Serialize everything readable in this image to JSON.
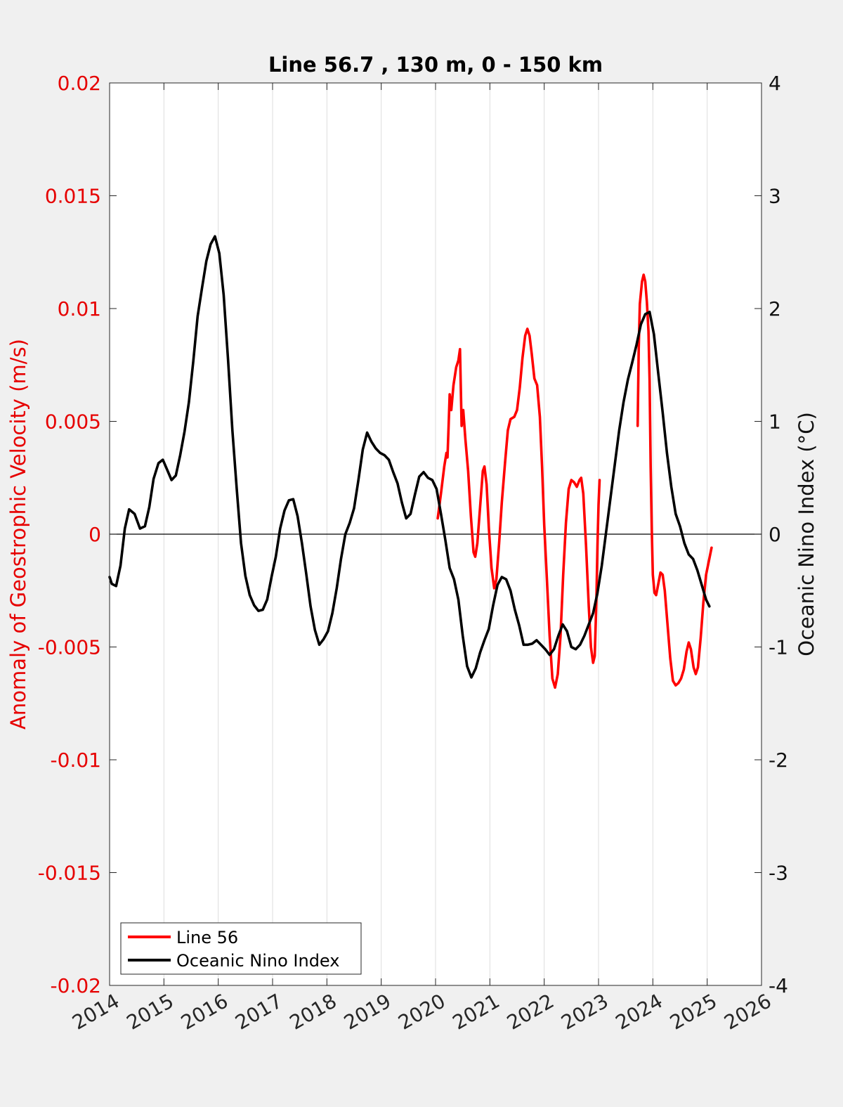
{
  "chart_data": {
    "type": "line",
    "title": "Line 56.7 , 130 m, 0 - 150 km",
    "xlabel": "",
    "ylabel_left": "Anomaly of Geostrophic Velocity (m/s)",
    "ylabel_right": "Oceanic Nino Index (°C)",
    "xlim": [
      2014,
      2026
    ],
    "ylim_left": [
      -0.02,
      0.02
    ],
    "ylim_right": [
      -4,
      4
    ],
    "x_ticks": [
      "2014",
      "2015",
      "2016",
      "2017",
      "2018",
      "2019",
      "2020",
      "2021",
      "2022",
      "2023",
      "2024",
      "2025",
      "2026"
    ],
    "y_ticks_left": [
      "-0.02",
      "-0.015",
      "-0.01",
      "-0.005",
      "0",
      "0.005",
      "0.01",
      "0.015",
      "0.02"
    ],
    "y_ticks_right": [
      "-4",
      "-3",
      "-2",
      "-1",
      "0",
      "1",
      "2",
      "3",
      "4"
    ],
    "grid": "vertical",
    "legend_position": "bottom-left",
    "colors": {
      "left_axis": "#e60000",
      "right_axis": "#111111",
      "grid": "#dddddd"
    },
    "series": [
      {
        "name": "Line 56",
        "color": "#ff0000",
        "axis": "left",
        "segments": [
          [
            [
              2020.04,
              0.0007
            ],
            [
              2020.1,
              0.0018
            ],
            [
              2020.16,
              0.003
            ],
            [
              2020.2,
              0.0036
            ],
            [
              2020.22,
              0.0034
            ],
            [
              2020.24,
              0.0048
            ],
            [
              2020.26,
              0.0062
            ],
            [
              2020.29,
              0.0055
            ],
            [
              2020.33,
              0.0066
            ],
            [
              2020.38,
              0.0074
            ],
            [
              2020.42,
              0.0077
            ],
            [
              2020.45,
              0.0082
            ],
            [
              2020.48,
              0.0048
            ],
            [
              2020.51,
              0.0055
            ],
            [
              2020.55,
              0.0042
            ],
            [
              2020.6,
              0.0028
            ],
            [
              2020.65,
              0.0008
            ],
            [
              2020.7,
              -0.0008
            ],
            [
              2020.73,
              -0.001
            ],
            [
              2020.77,
              -0.0004
            ],
            [
              2020.82,
              0.0012
            ],
            [
              2020.87,
              0.0028
            ],
            [
              2020.9,
              0.003
            ],
            [
              2020.94,
              0.0022
            ],
            [
              2020.98,
              0.0003
            ],
            [
              2021.03,
              -0.0015
            ],
            [
              2021.08,
              -0.0024
            ],
            [
              2021.12,
              -0.002
            ],
            [
              2021.17,
              -0.0004
            ],
            [
              2021.22,
              0.0014
            ],
            [
              2021.28,
              0.0032
            ],
            [
              2021.33,
              0.0046
            ],
            [
              2021.38,
              0.0051
            ],
            [
              2021.45,
              0.0052
            ],
            [
              2021.5,
              0.0055
            ],
            [
              2021.55,
              0.0065
            ],
            [
              2021.6,
              0.0078
            ],
            [
              2021.65,
              0.0088
            ],
            [
              2021.69,
              0.0091
            ],
            [
              2021.73,
              0.0088
            ],
            [
              2021.77,
              0.008
            ],
            [
              2021.82,
              0.0069
            ],
            [
              2021.87,
              0.0066
            ],
            [
              2021.92,
              0.0052
            ],
            [
              2021.96,
              0.003
            ],
            [
              2022.0,
              0.0004
            ],
            [
              2022.05,
              -0.002
            ],
            [
              2022.1,
              -0.0045
            ],
            [
              2022.15,
              -0.0064
            ],
            [
              2022.2,
              -0.0068
            ],
            [
              2022.25,
              -0.0062
            ],
            [
              2022.3,
              -0.0045
            ],
            [
              2022.35,
              -0.0018
            ],
            [
              2022.4,
              0.0005
            ],
            [
              2022.45,
              0.002
            ],
            [
              2022.5,
              0.0024
            ],
            [
              2022.55,
              0.0023
            ],
            [
              2022.6,
              0.0021
            ],
            [
              2022.65,
              0.0024
            ],
            [
              2022.68,
              0.0025
            ],
            [
              2022.72,
              0.0018
            ],
            [
              2022.77,
              -0.0005
            ],
            [
              2022.82,
              -0.0032
            ],
            [
              2022.86,
              -0.005
            ],
            [
              2022.9,
              -0.0057
            ],
            [
              2022.93,
              -0.0054
            ],
            [
              2022.96,
              -0.003
            ],
            [
              2022.98,
              -0.0005
            ],
            [
              2023.0,
              0.0013
            ],
            [
              2023.02,
              0.0024
            ]
          ],
          [
            [
              2023.72,
              0.0048
            ],
            [
              2023.74,
              0.0082
            ],
            [
              2023.76,
              0.0102
            ],
            [
              2023.8,
              0.0112
            ],
            [
              2023.83,
              0.0115
            ],
            [
              2023.86,
              0.0112
            ],
            [
              2023.89,
              0.0103
            ],
            [
              2023.92,
              0.009
            ],
            [
              2023.94,
              0.0068
            ],
            [
              2023.96,
              0.003
            ],
            [
              2023.98,
              0.0002
            ],
            [
              2024.0,
              -0.0018
            ],
            [
              2024.03,
              -0.0026
            ],
            [
              2024.06,
              -0.0027
            ],
            [
              2024.1,
              -0.0022
            ],
            [
              2024.14,
              -0.0017
            ],
            [
              2024.18,
              -0.0018
            ],
            [
              2024.22,
              -0.0025
            ],
            [
              2024.27,
              -0.004
            ],
            [
              2024.32,
              -0.0055
            ],
            [
              2024.37,
              -0.0065
            ],
            [
              2024.42,
              -0.0067
            ],
            [
              2024.47,
              -0.0066
            ],
            [
              2024.52,
              -0.0064
            ],
            [
              2024.57,
              -0.006
            ],
            [
              2024.62,
              -0.0052
            ],
            [
              2024.66,
              -0.0048
            ],
            [
              2024.7,
              -0.0051
            ],
            [
              2024.75,
              -0.0059
            ],
            [
              2024.79,
              -0.0062
            ],
            [
              2024.83,
              -0.0059
            ],
            [
              2024.88,
              -0.0046
            ],
            [
              2024.93,
              -0.003
            ],
            [
              2024.98,
              -0.0018
            ],
            [
              2025.03,
              -0.0012
            ],
            [
              2025.08,
              -0.0006
            ]
          ]
        ]
      },
      {
        "name": "Oceanic Nino Index",
        "color": "#000000",
        "axis": "right",
        "points": [
          [
            2014.0,
            -0.38
          ],
          [
            2014.04,
            -0.44
          ],
          [
            2014.12,
            -0.46
          ],
          [
            2014.2,
            -0.28
          ],
          [
            2014.28,
            0.05
          ],
          [
            2014.36,
            0.22
          ],
          [
            2014.46,
            0.18
          ],
          [
            2014.56,
            0.05
          ],
          [
            2014.65,
            0.07
          ],
          [
            2014.73,
            0.24
          ],
          [
            2014.81,
            0.49
          ],
          [
            2014.9,
            0.63
          ],
          [
            2014.98,
            0.66
          ],
          [
            2015.06,
            0.57
          ],
          [
            2015.14,
            0.48
          ],
          [
            2015.22,
            0.52
          ],
          [
            2015.3,
            0.7
          ],
          [
            2015.38,
            0.91
          ],
          [
            2015.46,
            1.17
          ],
          [
            2015.54,
            1.53
          ],
          [
            2015.62,
            1.93
          ],
          [
            2015.7,
            2.18
          ],
          [
            2015.78,
            2.42
          ],
          [
            2015.86,
            2.57
          ],
          [
            2015.94,
            2.64
          ],
          [
            2016.02,
            2.49
          ],
          [
            2016.1,
            2.12
          ],
          [
            2016.18,
            1.55
          ],
          [
            2016.26,
            0.92
          ],
          [
            2016.34,
            0.4
          ],
          [
            2016.42,
            -0.08
          ],
          [
            2016.5,
            -0.37
          ],
          [
            2016.58,
            -0.54
          ],
          [
            2016.66,
            -0.63
          ],
          [
            2016.74,
            -0.68
          ],
          [
            2016.82,
            -0.67
          ],
          [
            2016.9,
            -0.58
          ],
          [
            2016.98,
            -0.38
          ],
          [
            2017.06,
            -0.2
          ],
          [
            2017.14,
            0.05
          ],
          [
            2017.22,
            0.21
          ],
          [
            2017.3,
            0.3
          ],
          [
            2017.38,
            0.31
          ],
          [
            2017.46,
            0.16
          ],
          [
            2017.54,
            -0.08
          ],
          [
            2017.62,
            -0.35
          ],
          [
            2017.7,
            -0.64
          ],
          [
            2017.78,
            -0.85
          ],
          [
            2017.86,
            -0.98
          ],
          [
            2017.94,
            -0.93
          ],
          [
            2018.02,
            -0.86
          ],
          [
            2018.1,
            -0.7
          ],
          [
            2018.18,
            -0.48
          ],
          [
            2018.26,
            -0.22
          ],
          [
            2018.34,
            0.0
          ],
          [
            2018.42,
            0.1
          ],
          [
            2018.5,
            0.23
          ],
          [
            2018.58,
            0.48
          ],
          [
            2018.66,
            0.75
          ],
          [
            2018.74,
            0.9
          ],
          [
            2018.82,
            0.82
          ],
          [
            2018.9,
            0.76
          ],
          [
            2018.98,
            0.72
          ],
          [
            2019.06,
            0.7
          ],
          [
            2019.14,
            0.66
          ],
          [
            2019.22,
            0.55
          ],
          [
            2019.3,
            0.45
          ],
          [
            2019.38,
            0.28
          ],
          [
            2019.46,
            0.14
          ],
          [
            2019.54,
            0.18
          ],
          [
            2019.62,
            0.35
          ],
          [
            2019.7,
            0.51
          ],
          [
            2019.78,
            0.55
          ],
          [
            2019.86,
            0.5
          ],
          [
            2019.94,
            0.48
          ],
          [
            2020.02,
            0.4
          ],
          [
            2020.1,
            0.18
          ],
          [
            2020.18,
            -0.05
          ],
          [
            2020.26,
            -0.3
          ],
          [
            2020.34,
            -0.4
          ],
          [
            2020.42,
            -0.58
          ],
          [
            2020.5,
            -0.9
          ],
          [
            2020.58,
            -1.17
          ],
          [
            2020.66,
            -1.27
          ],
          [
            2020.74,
            -1.19
          ],
          [
            2020.82,
            -1.05
          ],
          [
            2020.9,
            -0.94
          ],
          [
            2020.98,
            -0.84
          ],
          [
            2021.06,
            -0.63
          ],
          [
            2021.14,
            -0.45
          ],
          [
            2021.22,
            -0.38
          ],
          [
            2021.3,
            -0.4
          ],
          [
            2021.38,
            -0.5
          ],
          [
            2021.46,
            -0.67
          ],
          [
            2021.54,
            -0.81
          ],
          [
            2021.62,
            -0.98
          ],
          [
            2021.7,
            -0.98
          ],
          [
            2021.78,
            -0.97
          ],
          [
            2021.86,
            -0.94
          ],
          [
            2021.94,
            -0.98
          ],
          [
            2022.02,
            -1.02
          ],
          [
            2022.1,
            -1.07
          ],
          [
            2022.18,
            -1.02
          ],
          [
            2022.26,
            -0.9
          ],
          [
            2022.34,
            -0.8
          ],
          [
            2022.42,
            -0.86
          ],
          [
            2022.5,
            -1.0
          ],
          [
            2022.58,
            -1.02
          ],
          [
            2022.66,
            -0.98
          ],
          [
            2022.74,
            -0.9
          ],
          [
            2022.82,
            -0.8
          ],
          [
            2022.9,
            -0.7
          ],
          [
            2022.98,
            -0.52
          ],
          [
            2023.06,
            -0.28
          ],
          [
            2023.14,
            0.02
          ],
          [
            2023.22,
            0.32
          ],
          [
            2023.3,
            0.62
          ],
          [
            2023.38,
            0.92
          ],
          [
            2023.46,
            1.17
          ],
          [
            2023.54,
            1.37
          ],
          [
            2023.62,
            1.52
          ],
          [
            2023.7,
            1.68
          ],
          [
            2023.78,
            1.86
          ],
          [
            2023.86,
            1.95
          ],
          [
            2023.94,
            1.97
          ],
          [
            2024.02,
            1.77
          ],
          [
            2024.1,
            1.42
          ],
          [
            2024.18,
            1.08
          ],
          [
            2024.26,
            0.72
          ],
          [
            2024.34,
            0.42
          ],
          [
            2024.42,
            0.18
          ],
          [
            2024.5,
            0.07
          ],
          [
            2024.58,
            -0.08
          ],
          [
            2024.66,
            -0.18
          ],
          [
            2024.74,
            -0.22
          ],
          [
            2024.82,
            -0.32
          ],
          [
            2024.9,
            -0.45
          ],
          [
            2024.98,
            -0.58
          ],
          [
            2025.04,
            -0.64
          ]
        ]
      }
    ]
  }
}
